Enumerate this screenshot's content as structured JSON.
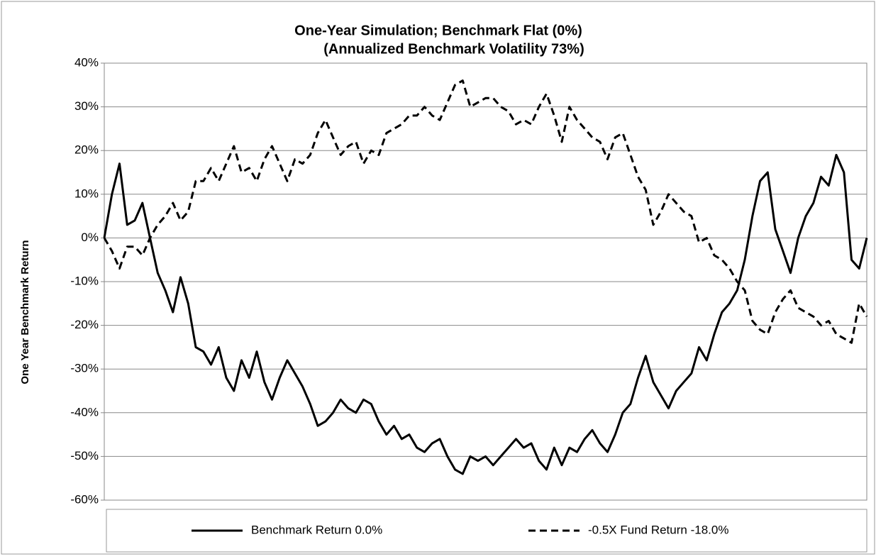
{
  "chart_data": {
    "type": "line",
    "title": "One-Year Simulation; Benchmark Flat (0%)",
    "subtitle": "(Annualized Benchmark Volatility 73%)",
    "y_label": "One Year Benchmark Return",
    "categories": [
      null,
      null,
      null,
      null,
      null,
      null,
      null,
      null,
      null,
      null,
      null,
      null,
      null,
      null,
      null,
      null,
      null,
      null,
      null,
      null,
      null,
      null,
      null,
      null,
      null,
      null,
      null,
      null,
      null,
      null,
      null,
      null,
      null,
      null,
      null,
      null,
      null,
      null,
      null,
      null,
      null,
      null,
      null,
      null,
      null,
      null,
      null,
      null,
      null,
      null,
      null,
      null,
      null,
      null,
      null,
      null,
      null,
      null,
      null,
      null,
      null,
      null,
      null,
      null,
      null,
      null,
      null,
      null,
      null,
      null,
      null,
      null,
      null,
      null,
      null,
      null,
      null,
      null,
      null,
      null,
      null,
      null,
      null,
      null,
      null,
      null,
      null,
      null,
      null,
      null,
      null,
      null,
      null,
      null,
      null,
      null,
      null,
      null,
      null,
      null,
      null
    ],
    "series": [
      {
        "name": "Benchmark Return 0.0%",
        "color": "#000000",
        "line_style": "solid",
        "values": [
          0,
          10,
          17,
          3,
          4,
          8,
          0,
          -8,
          -12,
          -17,
          -9,
          -15,
          -25,
          -26,
          -29,
          -25,
          -32,
          -35,
          -28,
          -32,
          -26,
          -33,
          -37,
          -32,
          -28,
          -31,
          -34,
          -38,
          -43,
          -42,
          -40,
          -37,
          -39,
          -40,
          -37,
          -38,
          -42,
          -45,
          -43,
          -46,
          -45,
          -48,
          -49,
          -47,
          -46,
          -50,
          -53,
          -54,
          -50,
          -51,
          -50,
          -52,
          -50,
          -48,
          -46,
          -48,
          -47,
          -51,
          -53,
          -48,
          -52,
          -48,
          -49,
          -46,
          -44,
          -47,
          -49,
          -45,
          -40,
          -38,
          -32,
          -27,
          -33,
          -36,
          -39,
          -35,
          -33,
          -31,
          -25,
          -28,
          -22,
          -17,
          -15,
          -12,
          -5,
          5,
          13,
          15,
          2,
          -3,
          -8,
          0,
          5,
          8,
          14,
          12,
          19,
          15,
          -5,
          -7,
          0
        ]
      },
      {
        "name": "-0.5X Fund Return -18.0%",
        "color": "#000000",
        "line_style": "dashed",
        "values": [
          0,
          -3,
          -7,
          -2,
          -2,
          -4,
          0,
          3,
          5,
          8,
          4,
          6,
          13,
          13,
          16,
          13,
          17,
          21,
          15,
          16,
          13,
          18,
          21,
          17,
          13,
          18,
          17,
          19,
          24,
          27,
          23,
          19,
          21,
          22,
          17,
          20,
          19,
          24,
          25,
          26,
          28,
          28,
          30,
          28,
          27,
          31,
          35,
          36,
          30,
          31,
          32,
          32,
          30,
          29,
          26,
          27,
          26,
          30,
          33,
          28,
          22,
          30,
          27,
          25,
          23,
          22,
          18,
          23,
          24,
          19,
          14,
          11,
          3,
          6,
          10,
          8,
          6,
          5,
          -1,
          0,
          -4,
          -5,
          -7,
          -10,
          -12,
          -19,
          -21,
          -22,
          -17,
          -14,
          -12,
          -16,
          -17,
          -18,
          -20,
          -19,
          -22,
          -23,
          -24,
          -15,
          -18
        ]
      }
    ],
    "ylim": [
      -60,
      40
    ],
    "yticks": [
      {
        "value": -60,
        "label": "-60%"
      },
      {
        "value": -50,
        "label": "-50%"
      },
      {
        "value": -40,
        "label": "-40%"
      },
      {
        "value": -30,
        "label": "-30%"
      },
      {
        "value": -20,
        "label": "-20%"
      },
      {
        "value": -10,
        "label": "-10%"
      },
      {
        "value": 0,
        "label": "0%"
      },
      {
        "value": 10,
        "label": "10%"
      },
      {
        "value": 20,
        "label": "20%"
      },
      {
        "value": 30,
        "label": "30%"
      },
      {
        "value": 40,
        "label": "40%"
      }
    ],
    "grid": true,
    "legend": "bottom"
  }
}
